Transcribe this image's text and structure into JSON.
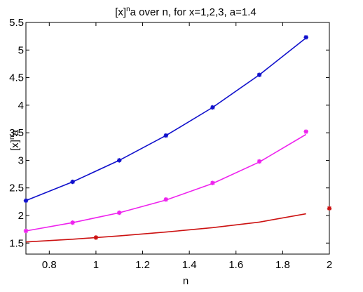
{
  "chart_data": {
    "type": "line",
    "title": "[x]^n a over n, for x=1,2,3, a=1.4",
    "title_parts": {
      "base": "[x]",
      "sup": "n",
      "rest": "a over n, for x=1,2,3, a=1.4"
    },
    "xlabel": "n",
    "ylabel": "[x]^n a",
    "ylabel_parts": {
      "base": "[x]",
      "sup": "n",
      "rest": "a"
    },
    "xlim": [
      0.7,
      2.0
    ],
    "ylim": [
      1.3,
      5.5
    ],
    "xticks": [
      0.8,
      1,
      1.2,
      1.4,
      1.6,
      1.8,
      2
    ],
    "xtick_labels": [
      "0.8",
      "1",
      "1.2",
      "1.4",
      "1.6",
      "1.8",
      "2"
    ],
    "yticks": [
      1.5,
      2,
      2.5,
      3,
      3.5,
      4,
      4.5,
      5,
      5.5
    ],
    "ytick_labels": [
      "1.5",
      "2",
      "2.5",
      "3",
      "3.5",
      "4",
      "4.5",
      "5",
      "5.5"
    ],
    "grid": false,
    "legend": "none",
    "series": [
      {
        "color": "#1010cc",
        "line_x": [
          0.7,
          0.9,
          1.1,
          1.3,
          1.5,
          1.7,
          1.9
        ],
        "line_y": [
          2.27,
          2.61,
          3.0,
          3.45,
          3.96,
          4.55,
          5.22
        ],
        "marker_x": [
          0.7,
          0.9,
          1.1,
          1.3,
          1.5,
          1.7,
          1.9
        ],
        "marker_y": [
          2.27,
          2.61,
          3.0,
          3.45,
          3.96,
          4.55,
          5.23
        ]
      },
      {
        "color": "#ee22ee",
        "line_x": [
          0.7,
          0.9,
          1.1,
          1.3,
          1.5,
          1.7,
          1.9
        ],
        "line_y": [
          1.72,
          1.87,
          2.05,
          2.28,
          2.58,
          2.97,
          3.47
        ],
        "marker_x": [
          0.7,
          0.9,
          1.1,
          1.3,
          1.5,
          1.7,
          1.9
        ],
        "marker_y": [
          1.72,
          1.87,
          2.05,
          2.29,
          2.59,
          2.98,
          3.52
        ]
      },
      {
        "color": "#cc1111",
        "line_x": [
          0.7,
          0.9,
          1.1,
          1.3,
          1.5,
          1.7,
          1.9
        ],
        "line_y": [
          1.52,
          1.57,
          1.63,
          1.7,
          1.78,
          1.88,
          2.03
        ],
        "marker_x": [
          1.0,
          2.0
        ],
        "marker_y": [
          1.6,
          2.13
        ]
      }
    ]
  }
}
